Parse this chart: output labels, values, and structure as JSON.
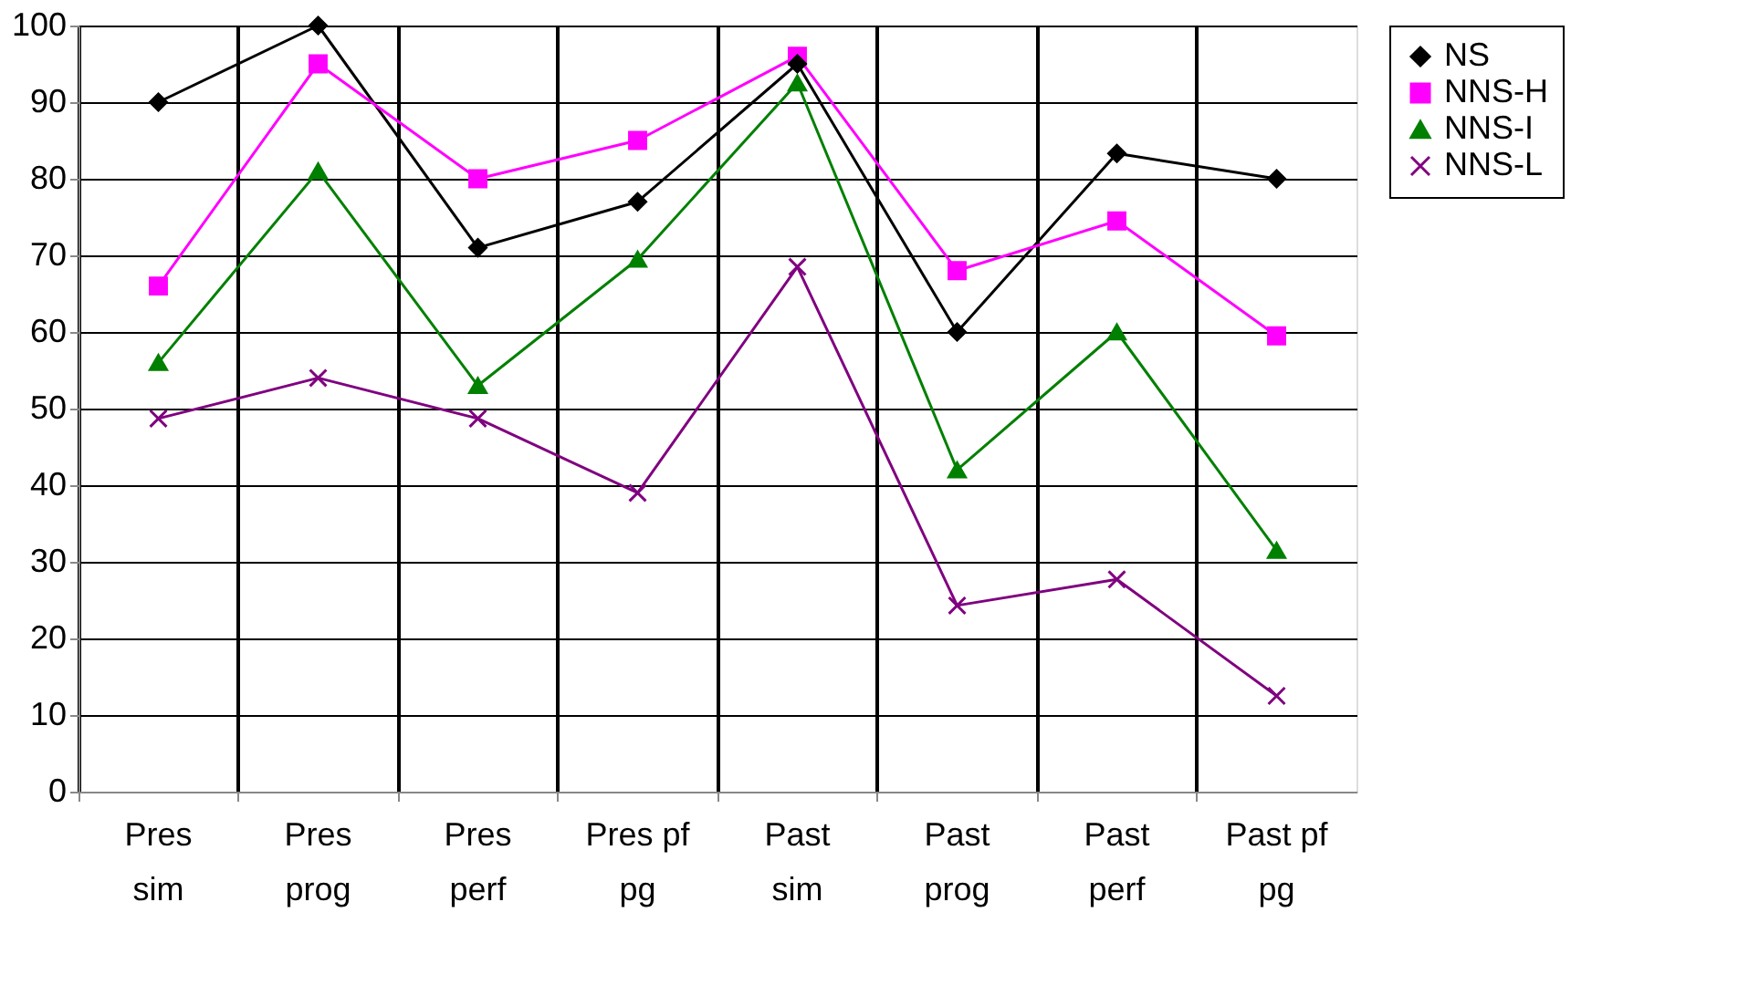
{
  "chart_data": {
    "type": "line",
    "categories": [
      "Pres sim",
      "Pres prog",
      "Pres perf",
      "Pres pf pg",
      "Past sim",
      "Past prog",
      "Past perf",
      "Past pf pg"
    ],
    "series": [
      {
        "name": "NS",
        "color": "#000000",
        "marker": "diamond",
        "values": [
          90,
          100,
          71,
          77,
          95,
          60,
          83.3,
          80
        ]
      },
      {
        "name": "NNS-H",
        "color": "#ff00ff",
        "marker": "square",
        "values": [
          66,
          95,
          80,
          85,
          96,
          68,
          74.5,
          59.5
        ]
      },
      {
        "name": "NNS-I",
        "color": "#008000",
        "marker": "triangle",
        "values": [
          56,
          81,
          53,
          69.5,
          92.5,
          42,
          60,
          31.5
        ]
      },
      {
        "name": "NNS-L",
        "color": "#800080",
        "marker": "cross",
        "values": [
          48.7,
          54,
          48.7,
          39,
          68.5,
          24.3,
          27.7,
          12.5
        ]
      }
    ],
    "ylim": [
      0,
      100
    ],
    "yticks": [
      0,
      10,
      20,
      30,
      40,
      50,
      60,
      70,
      80,
      90,
      100
    ],
    "grid": true,
    "legend": "right"
  }
}
